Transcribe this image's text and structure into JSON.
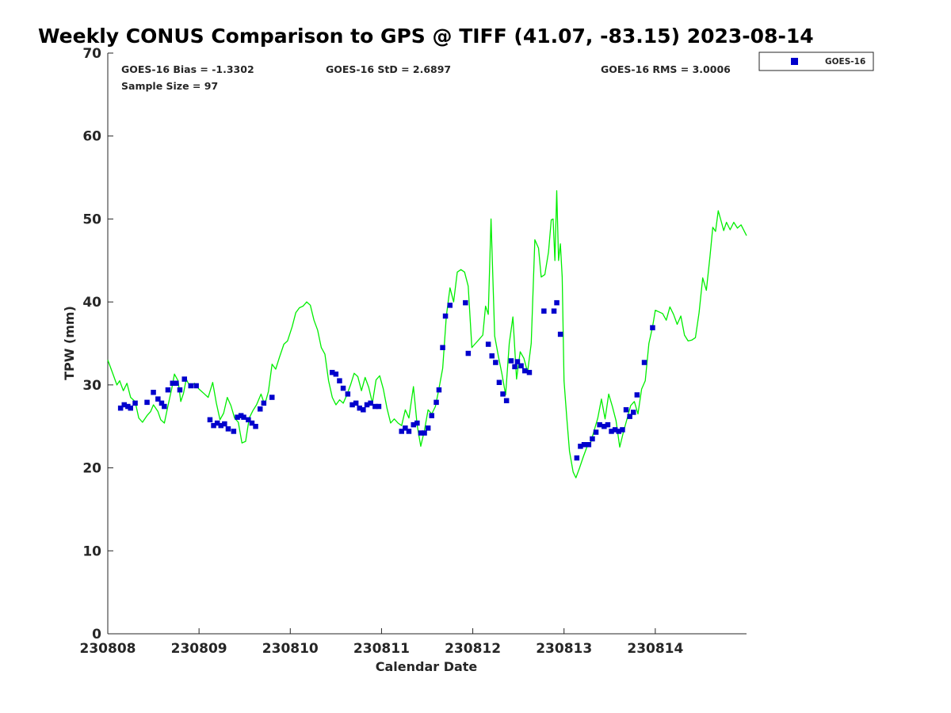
{
  "chart_data": {
    "type": "scatter",
    "title": "Weekly CONUS Comparison to GPS @ TIFF (41.07, -83.15) 2023-08-14",
    "xlabel": "Calendar Date",
    "ylabel": "TPW (mm)",
    "xlim": [
      0,
      7
    ],
    "ylim": [
      0,
      70
    ],
    "yticks": [
      0,
      10,
      20,
      30,
      40,
      50,
      60,
      70
    ],
    "xticks": [
      {
        "x": 0,
        "label": "230808"
      },
      {
        "x": 1,
        "label": "230809"
      },
      {
        "x": 2,
        "label": "230810"
      },
      {
        "x": 3,
        "label": "230811"
      },
      {
        "x": 4,
        "label": "230812"
      },
      {
        "x": 5,
        "label": "230813"
      },
      {
        "x": 6,
        "label": "230814"
      }
    ],
    "grid": false,
    "legend_position": "top-right, outside plot",
    "stats": {
      "bias": "GOES-16 Bias = -1.3302",
      "std": "GOES-16 StD = 2.6897",
      "rms": "GOES-16 RMS = 3.0006",
      "sample": "Sample Size = 97"
    },
    "series": [
      {
        "name": "GOES-16",
        "marker": "square",
        "color": "#0000cc",
        "points": [
          [
            0.14,
            27.2
          ],
          [
            0.18,
            27.6
          ],
          [
            0.22,
            27.4
          ],
          [
            0.25,
            27.2
          ],
          [
            0.3,
            27.8
          ],
          [
            0.43,
            27.9
          ],
          [
            0.5,
            29.1
          ],
          [
            0.55,
            28.3
          ],
          [
            0.59,
            27.8
          ],
          [
            0.62,
            27.4
          ],
          [
            0.66,
            29.4
          ],
          [
            0.71,
            30.2
          ],
          [
            0.75,
            30.2
          ],
          [
            0.79,
            29.4
          ],
          [
            0.84,
            30.7
          ],
          [
            0.91,
            29.9
          ],
          [
            0.97,
            29.9
          ],
          [
            1.12,
            25.8
          ],
          [
            1.16,
            25.1
          ],
          [
            1.2,
            25.4
          ],
          [
            1.24,
            25.1
          ],
          [
            1.28,
            25.3
          ],
          [
            1.32,
            24.7
          ],
          [
            1.38,
            24.4
          ],
          [
            1.42,
            26.1
          ],
          [
            1.46,
            26.3
          ],
          [
            1.49,
            26.1
          ],
          [
            1.54,
            25.8
          ],
          [
            1.58,
            25.4
          ],
          [
            1.62,
            25.0
          ],
          [
            1.67,
            27.1
          ],
          [
            1.71,
            27.8
          ],
          [
            1.8,
            28.5
          ],
          [
            2.46,
            31.5
          ],
          [
            2.5,
            31.3
          ],
          [
            2.54,
            30.5
          ],
          [
            2.58,
            29.6
          ],
          [
            2.63,
            28.9
          ],
          [
            2.68,
            27.6
          ],
          [
            2.72,
            27.8
          ],
          [
            2.76,
            27.2
          ],
          [
            2.8,
            27.0
          ],
          [
            2.84,
            27.6
          ],
          [
            2.88,
            27.8
          ],
          [
            2.93,
            27.4
          ],
          [
            2.97,
            27.4
          ],
          [
            3.22,
            24.4
          ],
          [
            3.26,
            24.8
          ],
          [
            3.3,
            24.4
          ],
          [
            3.35,
            25.2
          ],
          [
            3.39,
            25.4
          ],
          [
            3.43,
            24.2
          ],
          [
            3.47,
            24.2
          ],
          [
            3.51,
            24.8
          ],
          [
            3.55,
            26.3
          ],
          [
            3.6,
            27.9
          ],
          [
            3.63,
            29.4
          ],
          [
            3.67,
            34.5
          ],
          [
            3.7,
            38.3
          ],
          [
            3.75,
            39.6
          ],
          [
            3.92,
            39.9
          ],
          [
            3.95,
            33.8
          ],
          [
            4.17,
            34.9
          ],
          [
            4.21,
            33.5
          ],
          [
            4.25,
            32.7
          ],
          [
            4.29,
            30.3
          ],
          [
            4.33,
            28.9
          ],
          [
            4.37,
            28.1
          ],
          [
            4.42,
            32.9
          ],
          [
            4.46,
            32.2
          ],
          [
            4.49,
            32.8
          ],
          [
            4.53,
            32.3
          ],
          [
            4.57,
            31.7
          ],
          [
            4.62,
            31.5
          ],
          [
            4.78,
            38.9
          ],
          [
            4.89,
            38.9
          ],
          [
            4.92,
            39.9
          ],
          [
            4.96,
            36.1
          ],
          [
            5.14,
            21.2
          ],
          [
            5.18,
            22.6
          ],
          [
            5.22,
            22.8
          ],
          [
            5.27,
            22.8
          ],
          [
            5.31,
            23.5
          ],
          [
            5.35,
            24.3
          ],
          [
            5.39,
            25.2
          ],
          [
            5.44,
            25.0
          ],
          [
            5.48,
            25.2
          ],
          [
            5.52,
            24.4
          ],
          [
            5.56,
            24.6
          ],
          [
            5.6,
            24.4
          ],
          [
            5.64,
            24.6
          ],
          [
            5.68,
            27.0
          ],
          [
            5.72,
            26.2
          ],
          [
            5.76,
            26.7
          ],
          [
            5.8,
            28.8
          ],
          [
            5.88,
            32.7
          ],
          [
            5.97,
            36.9
          ]
        ]
      },
      {
        "name": "GPS",
        "marker": "line",
        "color": "#00ee00",
        "points": [
          [
            0.0,
            33.0
          ],
          [
            0.05,
            31.5
          ],
          [
            0.1,
            30.0
          ],
          [
            0.13,
            30.5
          ],
          [
            0.17,
            29.3
          ],
          [
            0.21,
            30.2
          ],
          [
            0.25,
            28.5
          ],
          [
            0.3,
            28.0
          ],
          [
            0.34,
            26.0
          ],
          [
            0.38,
            25.5
          ],
          [
            0.43,
            26.3
          ],
          [
            0.47,
            26.8
          ],
          [
            0.5,
            27.6
          ],
          [
            0.55,
            26.8
          ],
          [
            0.58,
            25.8
          ],
          [
            0.62,
            25.4
          ],
          [
            0.66,
            27.5
          ],
          [
            0.7,
            29.5
          ],
          [
            0.73,
            31.3
          ],
          [
            0.77,
            30.5
          ],
          [
            0.8,
            28.0
          ],
          [
            0.83,
            29.0
          ],
          [
            0.86,
            30.7
          ],
          [
            0.9,
            29.8
          ],
          [
            0.95,
            30.2
          ],
          [
            1.0,
            29.5
          ],
          [
            1.05,
            29.0
          ],
          [
            1.1,
            28.5
          ],
          [
            1.15,
            30.3
          ],
          [
            1.19,
            27.8
          ],
          [
            1.23,
            25.8
          ],
          [
            1.27,
            26.6
          ],
          [
            1.31,
            28.5
          ],
          [
            1.35,
            27.5
          ],
          [
            1.39,
            26.0
          ],
          [
            1.43,
            25.5
          ],
          [
            1.47,
            23.0
          ],
          [
            1.51,
            23.2
          ],
          [
            1.55,
            26.0
          ],
          [
            1.59,
            26.9
          ],
          [
            1.63,
            27.6
          ],
          [
            1.68,
            28.9
          ],
          [
            1.72,
            27.6
          ],
          [
            1.76,
            29.2
          ],
          [
            1.8,
            32.5
          ],
          [
            1.84,
            31.9
          ],
          [
            1.88,
            33.3
          ],
          [
            1.93,
            34.9
          ],
          [
            1.97,
            35.3
          ],
          [
            2.02,
            37.0
          ],
          [
            2.06,
            38.7
          ],
          [
            2.1,
            39.3
          ],
          [
            2.14,
            39.5
          ],
          [
            2.18,
            40.0
          ],
          [
            2.22,
            39.6
          ],
          [
            2.26,
            37.8
          ],
          [
            2.3,
            36.6
          ],
          [
            2.34,
            34.5
          ],
          [
            2.38,
            33.7
          ],
          [
            2.42,
            30.5
          ],
          [
            2.46,
            28.5
          ],
          [
            2.5,
            27.6
          ],
          [
            2.54,
            28.2
          ],
          [
            2.58,
            27.8
          ],
          [
            2.62,
            28.8
          ],
          [
            2.66,
            30.0
          ],
          [
            2.7,
            31.4
          ],
          [
            2.74,
            31.0
          ],
          [
            2.78,
            29.3
          ],
          [
            2.82,
            30.9
          ],
          [
            2.86,
            29.7
          ],
          [
            2.9,
            27.8
          ],
          [
            2.94,
            30.6
          ],
          [
            2.98,
            31.1
          ],
          [
            3.02,
            29.5
          ],
          [
            3.06,
            27.2
          ],
          [
            3.1,
            25.4
          ],
          [
            3.14,
            25.9
          ],
          [
            3.18,
            25.4
          ],
          [
            3.22,
            25.1
          ],
          [
            3.26,
            27.0
          ],
          [
            3.3,
            26.0
          ],
          [
            3.35,
            29.8
          ],
          [
            3.39,
            25.2
          ],
          [
            3.43,
            22.6
          ],
          [
            3.47,
            24.5
          ],
          [
            3.51,
            27.0
          ],
          [
            3.55,
            26.5
          ],
          [
            3.59,
            27.4
          ],
          [
            3.63,
            29.6
          ],
          [
            3.67,
            32.0
          ],
          [
            3.71,
            38.3
          ],
          [
            3.75,
            41.7
          ],
          [
            3.79,
            40.0
          ],
          [
            3.83,
            43.6
          ],
          [
            3.87,
            43.9
          ],
          [
            3.91,
            43.6
          ],
          [
            3.95,
            41.9
          ],
          [
            3.99,
            34.5
          ],
          [
            4.03,
            35.0
          ],
          [
            4.07,
            35.5
          ],
          [
            4.11,
            36.0
          ],
          [
            4.14,
            39.5
          ],
          [
            4.17,
            38.5
          ],
          [
            4.2,
            50.0
          ],
          [
            4.24,
            35.9
          ],
          [
            4.28,
            33.5
          ],
          [
            4.32,
            31.3
          ],
          [
            4.36,
            28.8
          ],
          [
            4.4,
            35.0
          ],
          [
            4.44,
            38.2
          ],
          [
            4.48,
            30.7
          ],
          [
            4.52,
            34.0
          ],
          [
            4.56,
            33.2
          ],
          [
            4.6,
            31.5
          ],
          [
            4.64,
            35.0
          ],
          [
            4.68,
            47.5
          ],
          [
            4.72,
            46.5
          ],
          [
            4.75,
            43.0
          ],
          [
            4.79,
            43.3
          ],
          [
            4.83,
            46.0
          ],
          [
            4.86,
            49.9
          ],
          [
            4.88,
            50.0
          ],
          [
            4.9,
            45.0
          ],
          [
            4.92,
            53.4
          ],
          [
            4.94,
            45.0
          ],
          [
            4.96,
            47.0
          ],
          [
            4.98,
            43.0
          ],
          [
            5.0,
            30.5
          ],
          [
            5.03,
            26.0
          ],
          [
            5.06,
            22.0
          ],
          [
            5.1,
            19.5
          ],
          [
            5.13,
            18.8
          ],
          [
            5.17,
            20.0
          ],
          [
            5.21,
            21.3
          ],
          [
            5.25,
            22.5
          ],
          [
            5.29,
            23.0
          ],
          [
            5.33,
            24.5
          ],
          [
            5.37,
            26.0
          ],
          [
            5.41,
            28.3
          ],
          [
            5.45,
            25.9
          ],
          [
            5.49,
            28.9
          ],
          [
            5.53,
            27.4
          ],
          [
            5.57,
            25.7
          ],
          [
            5.61,
            22.5
          ],
          [
            5.65,
            24.3
          ],
          [
            5.69,
            25.9
          ],
          [
            5.73,
            27.5
          ],
          [
            5.77,
            28.0
          ],
          [
            5.81,
            26.5
          ],
          [
            5.85,
            29.5
          ],
          [
            5.89,
            30.5
          ],
          [
            5.93,
            35.0
          ],
          [
            5.97,
            37.0
          ],
          [
            6.0,
            39.0
          ],
          [
            6.04,
            38.8
          ],
          [
            6.08,
            38.6
          ],
          [
            6.12,
            37.8
          ],
          [
            6.16,
            39.4
          ],
          [
            6.2,
            38.5
          ],
          [
            6.24,
            37.3
          ],
          [
            6.28,
            38.3
          ],
          [
            6.32,
            36.0
          ],
          [
            6.36,
            35.3
          ],
          [
            6.4,
            35.4
          ],
          [
            6.44,
            35.7
          ],
          [
            6.48,
            38.7
          ],
          [
            6.52,
            42.9
          ],
          [
            6.56,
            41.4
          ],
          [
            6.6,
            45.5
          ],
          [
            6.63,
            49.0
          ],
          [
            6.66,
            48.5
          ],
          [
            6.69,
            51.0
          ],
          [
            6.72,
            49.8
          ],
          [
            6.75,
            48.6
          ],
          [
            6.78,
            49.6
          ],
          [
            6.82,
            48.7
          ],
          [
            6.86,
            49.6
          ],
          [
            6.9,
            48.9
          ],
          [
            6.94,
            49.3
          ],
          [
            7.0,
            48.0
          ]
        ]
      }
    ]
  },
  "legend": {
    "label": "GOES-16"
  }
}
